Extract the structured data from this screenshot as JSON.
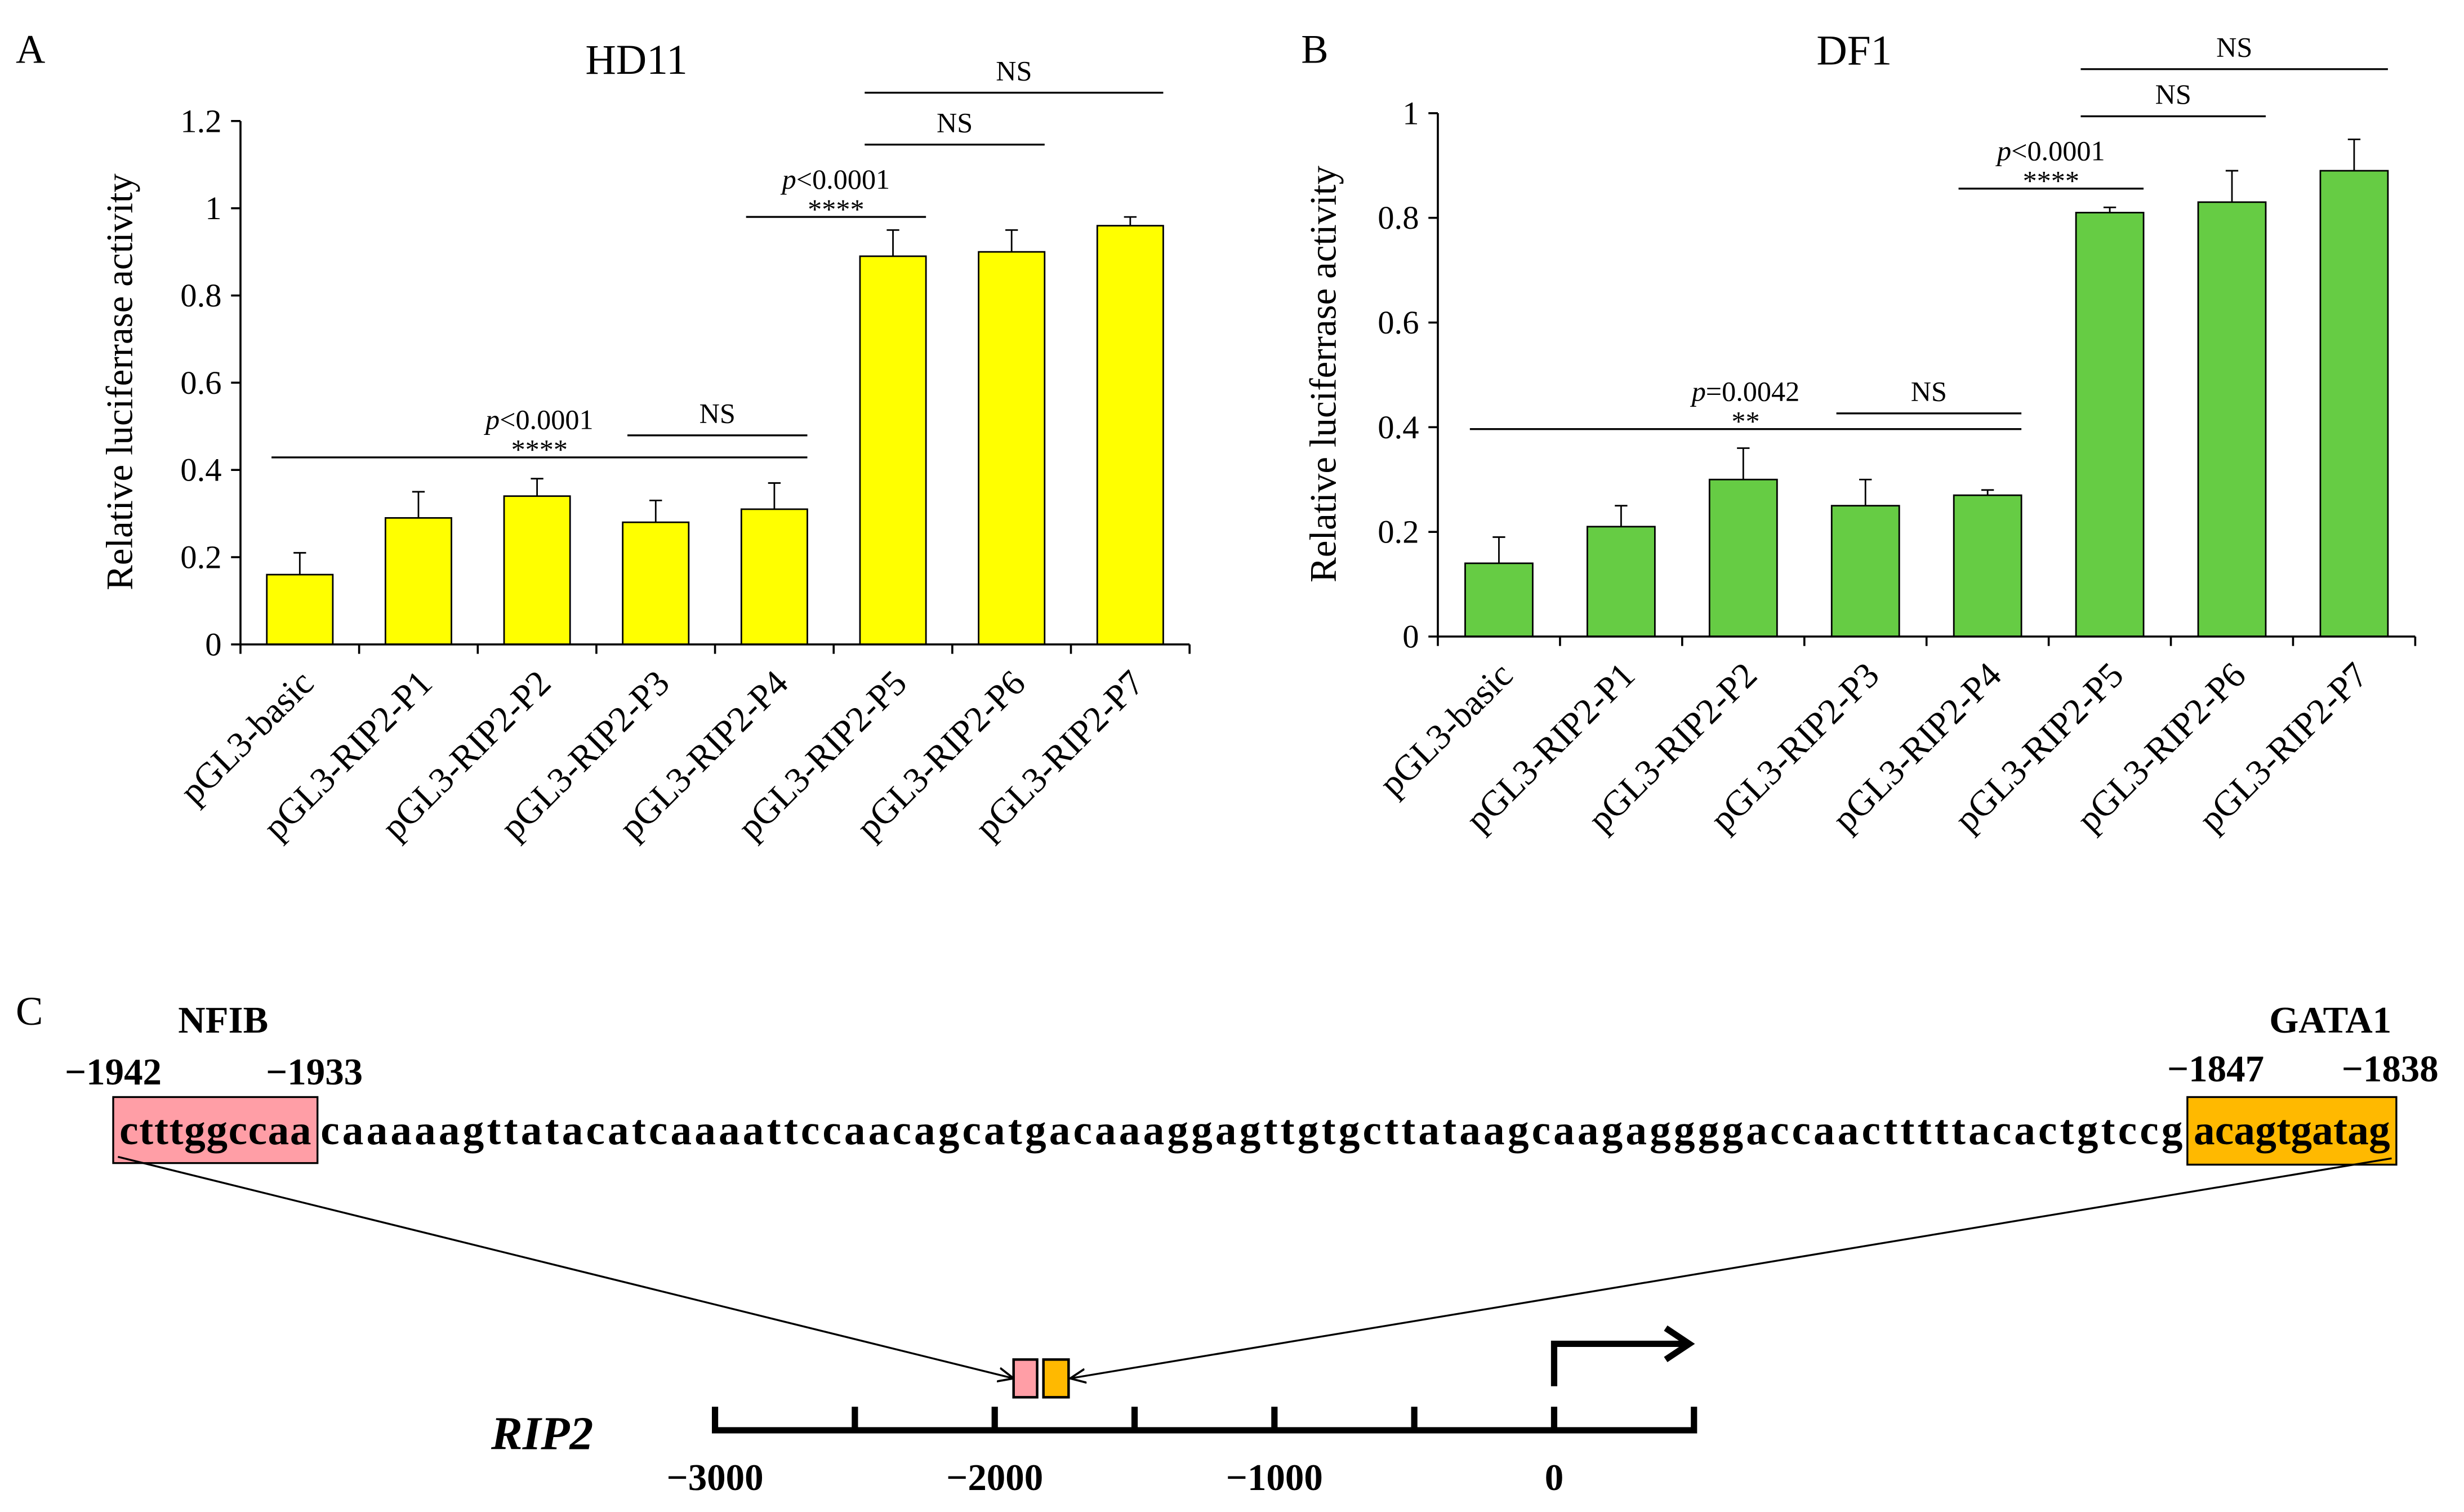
{
  "chart_data": [
    {
      "panel": "A",
      "type": "bar",
      "title": "HD11",
      "ylabel": "Relative luciferrase activity",
      "categories": [
        "pGL3-basic",
        "pGL3-RIP2-P1",
        "pGL3-RIP2-P2",
        "pGL3-RIP2-P3",
        "pGL3-RIP2-P4",
        "pGL3-RIP2-P5",
        "pGL3-RIP2-P6",
        "pGL3-RIP2-P7"
      ],
      "values": [
        0.16,
        0.29,
        0.34,
        0.28,
        0.31,
        0.89,
        0.9,
        0.96
      ],
      "errors": [
        0.05,
        0.06,
        0.04,
        0.05,
        0.06,
        0.06,
        0.05,
        0.02
      ],
      "ylim": [
        0,
        1.2
      ],
      "yticks": [
        0,
        0.2,
        0.4,
        0.6,
        0.8,
        1,
        1.2
      ],
      "ytick_labels": [
        "0",
        "0.2",
        "0.4",
        "0.6",
        "0.8",
        "1",
        "1.2"
      ],
      "grid": false,
      "bar_color": "#FFFF00",
      "annotations": [
        {
          "from": "pGL3-basic",
          "to": "pGL3-RIP2-P4",
          "p_symbol": "p",
          "p_text": "<0.0001",
          "stars": "****"
        },
        {
          "from": "pGL3-RIP2-P3",
          "to": "pGL3-RIP2-P4",
          "label": "NS"
        },
        {
          "from": "pGL3-RIP2-P4",
          "to": "pGL3-RIP2-P5",
          "p_symbol": "p",
          "p_text": "<0.0001",
          "stars": "****"
        },
        {
          "from": "pGL3-RIP2-P5",
          "to": "pGL3-RIP2-P6",
          "label": "NS"
        },
        {
          "from": "pGL3-RIP2-P5",
          "to": "pGL3-RIP2-P7",
          "label": "NS"
        }
      ]
    },
    {
      "panel": "B",
      "type": "bar",
      "title": "DF1",
      "ylabel": "Relative luciferrase activity",
      "categories": [
        "pGL3-basic",
        "pGL3-RIP2-P1",
        "pGL3-RIP2-P2",
        "pGL3-RIP2-P3",
        "pGL3-RIP2-P4",
        "pGL3-RIP2-P5",
        "pGL3-RIP2-P6",
        "pGL3-RIP2-P7"
      ],
      "values": [
        0.14,
        0.21,
        0.3,
        0.25,
        0.27,
        0.81,
        0.83,
        0.89
      ],
      "errors": [
        0.05,
        0.04,
        0.06,
        0.05,
        0.01,
        0.01,
        0.06,
        0.06
      ],
      "ylim": [
        0,
        1
      ],
      "yticks": [
        0,
        0.2,
        0.4,
        0.6,
        0.8,
        1
      ],
      "ytick_labels": [
        "0",
        "0.2",
        "0.4",
        "0.6",
        "0.8",
        "1"
      ],
      "grid": false,
      "bar_color": "#66CC44",
      "annotations": [
        {
          "from": "pGL3-basic",
          "to": "pGL3-RIP2-P4",
          "p_symbol": "p",
          "p_text": "=0.0042",
          "stars": "**"
        },
        {
          "from": "pGL3-RIP2-P3",
          "to": "pGL3-RIP2-P4",
          "label": "NS"
        },
        {
          "from": "pGL3-RIP2-P4",
          "to": "pGL3-RIP2-P5",
          "p_symbol": "p",
          "p_text": "<0.0001",
          "stars": "****"
        },
        {
          "from": "pGL3-RIP2-P5",
          "to": "pGL3-RIP2-P6",
          "label": "NS"
        },
        {
          "from": "pGL3-RIP2-P5",
          "to": "pGL3-RIP2-P7",
          "label": "NS"
        }
      ]
    }
  ],
  "panel_c": {
    "label": "C",
    "motifs": [
      {
        "name": "NFIB",
        "start_label": "−1942",
        "end_label": "−1933",
        "color": "#FF9EA6"
      },
      {
        "name": "GATA1",
        "start_label": "−1847",
        "end_label": "−1838",
        "color": "#FFB900"
      }
    ],
    "sequence": {
      "nfib_site": "ctttggccaa",
      "linker": "caaaaagttatacatcaaaattccaacagcatgacaaaggagttgtgcttataagcaagaggggaccaactttttacactgtccg",
      "gata1_site": "acagtgatag"
    },
    "gene": {
      "name": "RIP2",
      "axis_labels": [
        "−3000",
        "−2000",
        "−1000",
        "0"
      ]
    }
  }
}
